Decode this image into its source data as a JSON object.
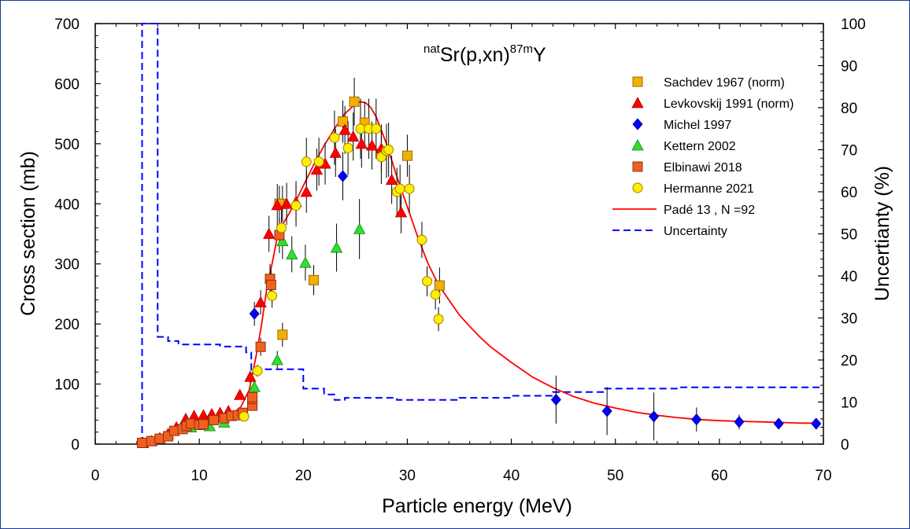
{
  "chart_data": {
    "type": "scatter",
    "title": {
      "pre": "nat",
      "main1": "Sr(p,xn)",
      "sup": "87m",
      "main2": "Y"
    },
    "xlabel": "Particle energy (MeV)",
    "ylabel": "Cross section (mb)",
    "y2label": "Uncertianty (%)",
    "xlim": [
      0,
      70
    ],
    "ylim": [
      0,
      700
    ],
    "y2lim": [
      0,
      100
    ],
    "xticks": [
      "0",
      "10",
      "20",
      "30",
      "40",
      "50",
      "60",
      "70"
    ],
    "yticks": [
      "0",
      "100",
      "200",
      "300",
      "400",
      "500",
      "600",
      "700"
    ],
    "y2ticks": [
      "0",
      "10",
      "20",
      "30",
      "40",
      "50",
      "60",
      "70",
      "80",
      "90",
      "100"
    ],
    "legend_position": "top-right",
    "series": [
      {
        "name": "Sachdev 1967 (norm)",
        "marker": "square",
        "color": "#f2b000",
        "stroke": "#a06800",
        "points": [
          [
            24.9,
            570,
            40
          ],
          [
            23.8,
            537,
            35
          ],
          [
            25.9,
            535,
            35
          ],
          [
            30.0,
            480,
            35
          ],
          [
            33.1,
            264,
            30
          ],
          [
            21.0,
            273,
            25
          ],
          [
            18.0,
            400,
            30
          ],
          [
            17.7,
            400,
            30
          ],
          [
            18.0,
            182,
            20
          ]
        ]
      },
      {
        "name": "Levkovskij 1991 (norm)",
        "marker": "triangle",
        "color": "#ff0000",
        "stroke": "#b00000",
        "points": [
          [
            4.6,
            2,
            2
          ],
          [
            5.4,
            5,
            2
          ],
          [
            6.2,
            10,
            3
          ],
          [
            7.0,
            17,
            3
          ],
          [
            7.8,
            28,
            4
          ],
          [
            8.7,
            42,
            5
          ],
          [
            9.5,
            47,
            5
          ],
          [
            10.4,
            48,
            5
          ],
          [
            11.2,
            50,
            5
          ],
          [
            12.0,
            52,
            5
          ],
          [
            12.8,
            55,
            6
          ],
          [
            13.9,
            82,
            8
          ],
          [
            14.9,
            112,
            10
          ],
          [
            15.9,
            236,
            20
          ],
          [
            16.7,
            350,
            30
          ],
          [
            17.5,
            398,
            35
          ],
          [
            18.4,
            400,
            35
          ],
          [
            19.3,
            403,
            35
          ],
          [
            20.3,
            420,
            35
          ],
          [
            21.3,
            457,
            35
          ],
          [
            22.1,
            467,
            35
          ],
          [
            23.1,
            485,
            40
          ],
          [
            24.0,
            523,
            40
          ],
          [
            24.8,
            512,
            40
          ],
          [
            25.6,
            500,
            40
          ],
          [
            26.6,
            497,
            40
          ],
          [
            27.5,
            492,
            40
          ],
          [
            28.5,
            440,
            40
          ],
          [
            29.4,
            386,
            35
          ]
        ]
      },
      {
        "name": "Michel 1997",
        "marker": "diamond",
        "color": "#0000ff",
        "stroke": "#00008b",
        "points": [
          [
            15.3,
            217,
            20
          ],
          [
            23.8,
            446,
            40
          ],
          [
            44.3,
            74,
            40
          ],
          [
            49.2,
            55,
            40
          ],
          [
            53.7,
            46,
            40
          ],
          [
            57.8,
            41,
            20
          ],
          [
            61.9,
            37,
            12
          ],
          [
            65.7,
            34,
            8
          ],
          [
            69.3,
            34,
            6
          ]
        ]
      },
      {
        "name": "Kettern 2002",
        "marker": "triangle",
        "color": "#33dd33",
        "stroke": "#118811",
        "points": [
          [
            9.2,
            28,
            4
          ],
          [
            11.0,
            30,
            4
          ],
          [
            12.4,
            36,
            4
          ],
          [
            15.3,
            95,
            10
          ],
          [
            17.5,
            140,
            15
          ],
          [
            18.0,
            338,
            30
          ],
          [
            18.9,
            316,
            30
          ],
          [
            20.2,
            302,
            30
          ],
          [
            23.2,
            327,
            40
          ],
          [
            25.4,
            358,
            50
          ]
        ]
      },
      {
        "name": "Elbinawi 2018",
        "marker": "square",
        "color": "#f06020",
        "stroke": "#903010",
        "points": [
          [
            4.5,
            2,
            1
          ],
          [
            5.4,
            5,
            1
          ],
          [
            6.2,
            9,
            2
          ],
          [
            7.0,
            13,
            2
          ],
          [
            7.6,
            22,
            2
          ],
          [
            8.4,
            25,
            3
          ],
          [
            8.8,
            30,
            3
          ],
          [
            9.2,
            34,
            3
          ],
          [
            10.0,
            32,
            3
          ],
          [
            10.4,
            33,
            3
          ],
          [
            11.4,
            40,
            4
          ],
          [
            12.4,
            43,
            4
          ],
          [
            13.1,
            47,
            4
          ],
          [
            13.7,
            48,
            5
          ],
          [
            14.2,
            52,
            5
          ],
          [
            15.1,
            64,
            6
          ],
          [
            15.1,
            75,
            8
          ],
          [
            15.1,
            78,
            8
          ],
          [
            15.9,
            162,
            15
          ],
          [
            16.8,
            275,
            25
          ],
          [
            16.9,
            265,
            25
          ],
          [
            17.7,
            348,
            30
          ]
        ]
      },
      {
        "name": "Hermanne 2021",
        "marker": "circle",
        "color": "#ffee00",
        "stroke": "#a08000",
        "points": [
          [
            14.3,
            46,
            5
          ],
          [
            15.6,
            122,
            10
          ],
          [
            17.0,
            247,
            20
          ],
          [
            17.9,
            360,
            30
          ],
          [
            19.3,
            397,
            35
          ],
          [
            20.3,
            470,
            40
          ],
          [
            21.5,
            470,
            40
          ],
          [
            23.0,
            510,
            45
          ],
          [
            24.3,
            493,
            45
          ],
          [
            25.5,
            525,
            50
          ],
          [
            26.3,
            525,
            50
          ],
          [
            27.0,
            525,
            50
          ],
          [
            27.5,
            478,
            45
          ],
          [
            28.0,
            488,
            45
          ],
          [
            28.2,
            490,
            45
          ],
          [
            29.0,
            420,
            40
          ],
          [
            29.3,
            425,
            40
          ],
          [
            30.2,
            425,
            40
          ],
          [
            31.4,
            340,
            30
          ],
          [
            31.9,
            271,
            25
          ],
          [
            32.7,
            249,
            25
          ],
          [
            33.0,
            208,
            20
          ]
        ]
      }
    ],
    "fit": {
      "name": "Padé 13 , N =92",
      "color": "#ff0000",
      "points": [
        [
          4.5,
          0
        ],
        [
          6,
          5
        ],
        [
          8,
          18
        ],
        [
          10,
          30
        ],
        [
          12,
          40
        ],
        [
          13,
          48
        ],
        [
          14,
          62
        ],
        [
          14.8,
          90
        ],
        [
          15.5,
          150
        ],
        [
          16,
          200
        ],
        [
          16.5,
          260
        ],
        [
          17,
          300
        ],
        [
          17.5,
          345
        ],
        [
          18,
          365
        ],
        [
          19,
          395
        ],
        [
          20,
          430
        ],
        [
          21,
          465
        ],
        [
          22,
          497
        ],
        [
          23,
          525
        ],
        [
          24,
          550
        ],
        [
          25,
          566
        ],
        [
          25.5,
          570
        ],
        [
          26,
          568
        ],
        [
          26.5,
          560
        ],
        [
          27,
          545
        ],
        [
          28,
          500
        ],
        [
          29,
          445
        ],
        [
          30,
          395
        ],
        [
          31,
          345
        ],
        [
          32,
          300
        ],
        [
          33,
          265
        ],
        [
          34,
          240
        ],
        [
          35,
          215
        ],
        [
          36,
          196
        ],
        [
          37,
          178
        ],
        [
          38,
          162
        ],
        [
          40,
          136
        ],
        [
          42,
          112
        ],
        [
          44,
          94
        ],
        [
          46,
          79
        ],
        [
          48,
          68
        ],
        [
          50,
          60
        ],
        [
          52,
          53
        ],
        [
          54,
          48
        ],
        [
          56,
          44
        ],
        [
          58,
          41
        ],
        [
          60,
          39
        ],
        [
          62,
          38
        ],
        [
          64,
          37
        ],
        [
          66,
          36
        ],
        [
          68,
          35
        ],
        [
          69.5,
          35
        ]
      ]
    },
    "uncertainty": {
      "name": "Uncertainty",
      "color": "#0000ff",
      "points": [
        [
          4.5,
          0
        ],
        [
          4.5,
          100
        ],
        [
          6.0,
          100
        ],
        [
          6.0,
          25.5
        ],
        [
          7.0,
          25.5
        ],
        [
          7.0,
          24.5
        ],
        [
          8.0,
          24.5
        ],
        [
          8.0,
          23.7
        ],
        [
          12.0,
          23.7
        ],
        [
          12.0,
          23.2
        ],
        [
          14.5,
          23.2
        ],
        [
          14.5,
          21.8
        ],
        [
          15.0,
          21.8
        ],
        [
          15.0,
          17.5
        ],
        [
          16.0,
          17.5
        ],
        [
          16.0,
          17.8
        ],
        [
          20.0,
          17.8
        ],
        [
          20.0,
          13.2
        ],
        [
          22.0,
          13.2
        ],
        [
          22.0,
          11.8
        ],
        [
          23.0,
          11.8
        ],
        [
          23.0,
          10.5
        ],
        [
          24.0,
          10.5
        ],
        [
          24.0,
          11.0
        ],
        [
          29.0,
          11.0
        ],
        [
          29.0,
          10.5
        ],
        [
          35.0,
          10.5
        ],
        [
          35.0,
          11.0
        ],
        [
          40.0,
          11.0
        ],
        [
          40.0,
          11.5
        ],
        [
          44.0,
          11.5
        ],
        [
          44.0,
          12.4
        ],
        [
          49.0,
          12.4
        ],
        [
          49.0,
          13.2
        ],
        [
          56.0,
          13.2
        ],
        [
          56.0,
          13.5
        ],
        [
          70.0,
          13.5
        ]
      ]
    }
  }
}
